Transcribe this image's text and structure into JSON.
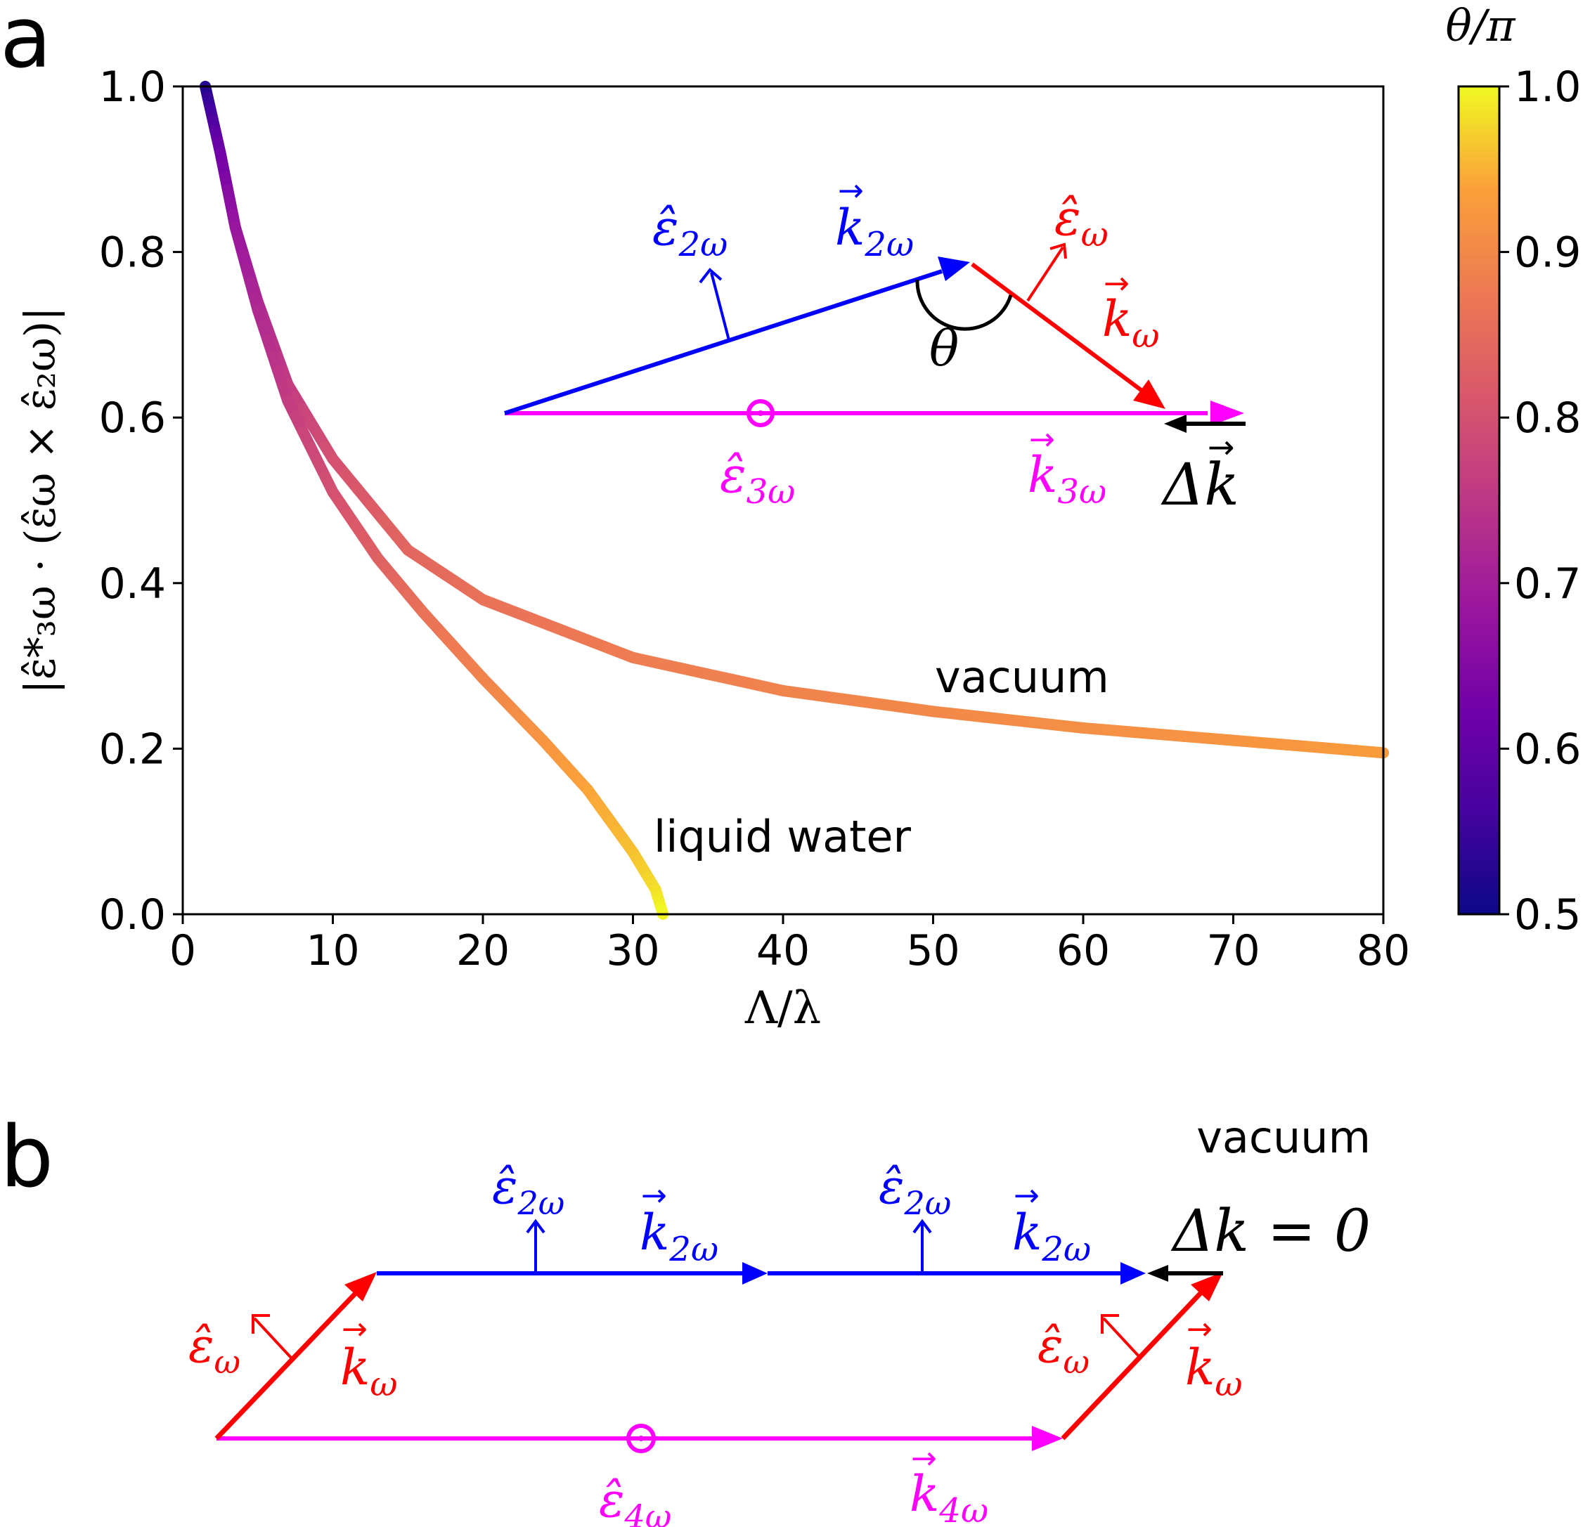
{
  "chart_data": {
    "type": "line",
    "panel_label": "a",
    "xlabel": "Λ/λ",
    "ylabel": "|ε̂*₃ω · (ε̂ω × ε̂₂ω)|",
    "xlim": [
      0,
      80
    ],
    "ylim": [
      0,
      1
    ],
    "xticks": [
      "0",
      "10",
      "20",
      "30",
      "40",
      "50",
      "60",
      "70",
      "80"
    ],
    "yticks": [
      "0.0",
      "0.2",
      "0.4",
      "0.6",
      "0.8",
      "1.0"
    ],
    "grid": false,
    "colorbar": {
      "title": "θ/π",
      "colormap": "plasma",
      "range": [
        0.5,
        1.0
      ],
      "ticks": [
        "0.5",
        "0.6",
        "0.7",
        "0.8",
        "0.9",
        "1.0"
      ]
    },
    "series": [
      {
        "name": "vacuum",
        "x": [
          1.5,
          2.5,
          3.5,
          5,
          7,
          10,
          15,
          20,
          30,
          40,
          50,
          60,
          70,
          80
        ],
        "y": [
          1.0,
          0.92,
          0.83,
          0.74,
          0.64,
          0.55,
          0.44,
          0.38,
          0.31,
          0.27,
          0.245,
          0.225,
          0.21,
          0.195
        ],
        "theta_over_pi": [
          0.52,
          0.62,
          0.68,
          0.72,
          0.76,
          0.8,
          0.84,
          0.86,
          0.88,
          0.89,
          0.9,
          0.91,
          0.92,
          0.93
        ]
      },
      {
        "name": "liquid water",
        "x": [
          1.5,
          2.5,
          3.5,
          5,
          7,
          10,
          13,
          16,
          20,
          24,
          27,
          30,
          31.5,
          32
        ],
        "y": [
          1.0,
          0.92,
          0.83,
          0.73,
          0.62,
          0.51,
          0.43,
          0.365,
          0.285,
          0.21,
          0.15,
          0.075,
          0.03,
          0.0
        ],
        "theta_over_pi": [
          0.52,
          0.62,
          0.68,
          0.72,
          0.76,
          0.8,
          0.83,
          0.86,
          0.89,
          0.92,
          0.94,
          0.96,
          0.98,
          1.0
        ]
      }
    ]
  },
  "panel_a": {
    "label": "a",
    "annotations": {
      "vacuum": "vacuum",
      "water": "liquid water"
    },
    "inset": {
      "e2w": "ε̂",
      "e2w_sub": "2ω",
      "k2w": "k",
      "k2w_sub": "2ω",
      "ew": "ε̂",
      "ew_sub": "ω",
      "kw": "k",
      "kw_sub": "ω",
      "theta": "θ",
      "e3w": "ε̂",
      "e3w_sub": "3ω",
      "k3w": "k",
      "k3w_sub": "3ω",
      "dk": "Δk"
    }
  },
  "panel_b": {
    "label": "b",
    "medium": "vacuum",
    "condition": "Δk = 0",
    "labels": {
      "e2w_1": "ε̂",
      "e2w_1_sub": "2ω",
      "k2w_1": "k",
      "k2w_1_sub": "2ω",
      "e2w_2": "ε̂",
      "e2w_2_sub": "2ω",
      "k2w_2": "k",
      "k2w_2_sub": "2ω",
      "ew_1": "ε̂",
      "ew_1_sub": "ω",
      "kw_1": "k",
      "kw_1_sub": "ω",
      "ew_2": "ε̂",
      "ew_2_sub": "ω",
      "kw_2": "k",
      "kw_2_sub": "ω",
      "e4w": "ε̂",
      "e4w_sub": "4ω",
      "k4w": "k",
      "k4w_sub": "4ω"
    }
  },
  "colors": {
    "blue": "#0000ff",
    "red": "#ff0000",
    "magenta": "#ff00ff",
    "black": "#000000"
  }
}
